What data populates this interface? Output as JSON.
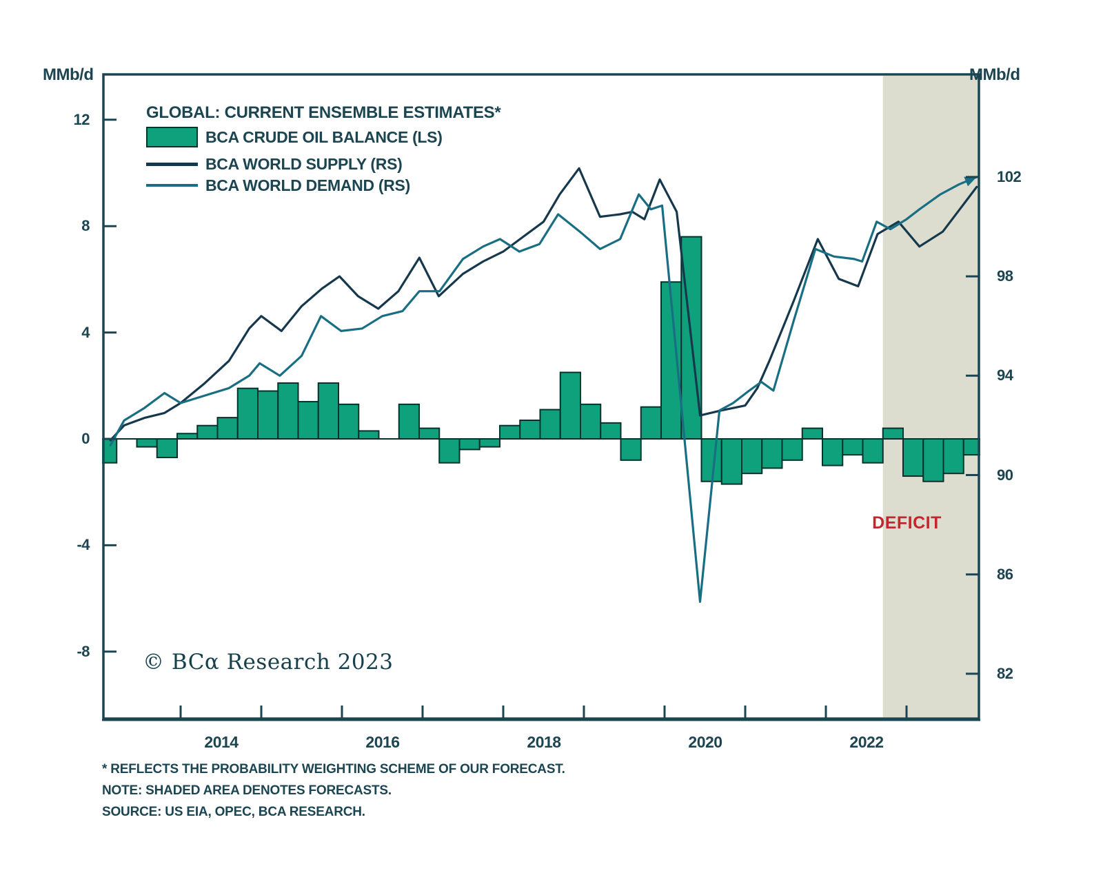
{
  "axes": {
    "left_unit": "MMb/d",
    "right_unit": "MMb/d"
  },
  "legend": {
    "title": "GLOBAL: CURRENT ENSEMBLE ESTIMATES*",
    "items": [
      {
        "label": "BCA CRUDE OIL BALANCE (LS)",
        "swatch": "bar-swatch",
        "color": "#0fa17c"
      },
      {
        "label": "BCA WORLD SUPPLY (RS)",
        "swatch": "line-swatch",
        "color": "#16384d"
      },
      {
        "label": "BCA WORLD DEMAND (RS)",
        "swatch": "line-swatch",
        "color": "#196e84"
      }
    ]
  },
  "annotations": {
    "deficit_label": "DEFICIT",
    "copyright": "© BCα Research 2023"
  },
  "footnotes": [
    "* REFLECTS THE PROBABILITY WEIGHTING SCHEME OF OUR FORECAST.",
    "NOTE: SHADED AREA DENOTES FORECASTS.",
    "SOURCE: US EIA, OPEC, BCA RESEARCH."
  ],
  "colors": {
    "frame": "#1c4552",
    "bar_fill": "#0fa17c",
    "bar_stroke": "#06302c",
    "supply_line": "#16384d",
    "demand_line": "#196e84",
    "forecast_shade": "#dcdccf",
    "deficit_red": "#c1272d",
    "background": "#ffffff"
  },
  "chart_data": {
    "type": "combo_bar_line",
    "title": "GLOBAL: CURRENT ENSEMBLE ESTIMATES*",
    "left_axis": {
      "unit": "MMb/d",
      "ticks": [
        12,
        8,
        4,
        0,
        -4,
        -8
      ],
      "range": [
        -10.6,
        13.7
      ],
      "grid": false
    },
    "right_axis": {
      "unit": "MMb/d",
      "ticks": [
        102,
        98,
        94,
        90,
        86,
        82
      ],
      "range": [
        80.2,
        106.1
      ]
    },
    "x_axis": {
      "start_year": 2013,
      "end_year": 2023.9,
      "year_tick_start": 2014,
      "year_tick_count": 10,
      "year_labels": [
        "2014",
        "2016",
        "2018",
        "2020",
        "2022"
      ]
    },
    "forecast_shade": {
      "start_quarter": "2022Q4",
      "note": "shaded area denotes forecasts"
    },
    "balance_bars": {
      "name": "BCA CRUDE OIL BALANCE (LS)",
      "start_quarter": "2013Q1",
      "quarterly_values": [
        -0.9,
        0,
        -0.3,
        -0.7,
        0.2,
        0.5,
        0.8,
        1.9,
        1.8,
        2.1,
        1.4,
        2.1,
        1.3,
        0.3,
        0,
        1.3,
        0.4,
        -0.9,
        -0.4,
        -0.3,
        0.5,
        0.7,
        1.1,
        2.5,
        1.3,
        0.6,
        -0.8,
        1.2,
        5.9,
        7.6,
        -1.6,
        -1.7,
        -1.3,
        -1.1,
        -0.8,
        0.4,
        -1.0,
        -0.6,
        -0.9,
        0.4,
        -1.4,
        -1.6,
        -1.3,
        -0.6
      ]
    },
    "supply_line": {
      "name": "BCA WORLD SUPPLY (RS)",
      "points_t_v": [
        [
          0.13,
          91.4
        ],
        [
          0.3,
          92.0
        ],
        [
          0.55,
          92.3
        ],
        [
          0.8,
          92.5
        ],
        [
          1.0,
          92.9
        ],
        [
          1.3,
          93.7
        ],
        [
          1.6,
          94.6
        ],
        [
          1.85,
          95.9
        ],
        [
          2.0,
          96.4
        ],
        [
          2.25,
          95.8
        ],
        [
          2.5,
          96.8
        ],
        [
          2.75,
          97.5
        ],
        [
          2.97,
          98.0
        ],
        [
          3.2,
          97.2
        ],
        [
          3.45,
          96.7
        ],
        [
          3.7,
          97.4
        ],
        [
          3.96,
          98.75
        ],
        [
          4.2,
          97.2
        ],
        [
          4.5,
          98.1
        ],
        [
          4.75,
          98.6
        ],
        [
          5.0,
          99.0
        ],
        [
          5.25,
          99.6
        ],
        [
          5.5,
          100.2
        ],
        [
          5.7,
          101.3
        ],
        [
          5.94,
          102.35
        ],
        [
          6.2,
          100.4
        ],
        [
          6.45,
          100.5
        ],
        [
          6.6,
          100.6
        ],
        [
          6.75,
          100.3
        ],
        [
          6.94,
          101.9
        ],
        [
          7.15,
          100.6
        ],
        [
          7.44,
          92.4
        ],
        [
          7.7,
          92.6
        ],
        [
          8.0,
          92.8
        ],
        [
          8.15,
          93.5
        ],
        [
          8.3,
          94.6
        ],
        [
          8.6,
          97.0
        ],
        [
          8.9,
          99.5
        ],
        [
          9.16,
          97.9
        ],
        [
          9.4,
          97.6
        ],
        [
          9.64,
          99.7
        ],
        [
          9.9,
          100.2
        ],
        [
          10.16,
          99.2
        ],
        [
          10.45,
          99.8
        ],
        [
          10.87,
          101.6
        ]
      ]
    },
    "demand_line": {
      "name": "BCA WORLD DEMAND (RS)",
      "points_t_v": [
        [
          0.13,
          91.2
        ],
        [
          0.3,
          92.2
        ],
        [
          0.55,
          92.7
        ],
        [
          0.8,
          93.3
        ],
        [
          1.0,
          92.9
        ],
        [
          1.3,
          93.2
        ],
        [
          1.6,
          93.5
        ],
        [
          1.85,
          94.0
        ],
        [
          1.98,
          94.5
        ],
        [
          2.23,
          94.0
        ],
        [
          2.5,
          94.8
        ],
        [
          2.74,
          96.4
        ],
        [
          2.99,
          95.8
        ],
        [
          3.25,
          95.9
        ],
        [
          3.5,
          96.4
        ],
        [
          3.75,
          96.6
        ],
        [
          3.96,
          97.4
        ],
        [
          4.21,
          97.4
        ],
        [
          4.5,
          98.7
        ],
        [
          4.75,
          99.2
        ],
        [
          4.96,
          99.5
        ],
        [
          5.2,
          99.0
        ],
        [
          5.45,
          99.3
        ],
        [
          5.68,
          100.5
        ],
        [
          5.95,
          99.8
        ],
        [
          6.2,
          99.1
        ],
        [
          6.45,
          99.5
        ],
        [
          6.68,
          101.3
        ],
        [
          6.83,
          100.7
        ],
        [
          6.97,
          100.85
        ],
        [
          7.44,
          84.9
        ],
        [
          7.68,
          92.6
        ],
        [
          7.85,
          92.9
        ],
        [
          8.05,
          93.4
        ],
        [
          8.2,
          93.75
        ],
        [
          8.35,
          93.4
        ],
        [
          8.6,
          96.2
        ],
        [
          8.87,
          99.1
        ],
        [
          9.1,
          98.8
        ],
        [
          9.35,
          98.7
        ],
        [
          9.45,
          98.6
        ],
        [
          9.63,
          100.2
        ],
        [
          9.8,
          99.9
        ],
        [
          10.0,
          100.3
        ],
        [
          10.16,
          100.7
        ],
        [
          10.42,
          101.3
        ],
        [
          10.65,
          101.7
        ],
        [
          10.87,
          102.0
        ]
      ]
    }
  }
}
